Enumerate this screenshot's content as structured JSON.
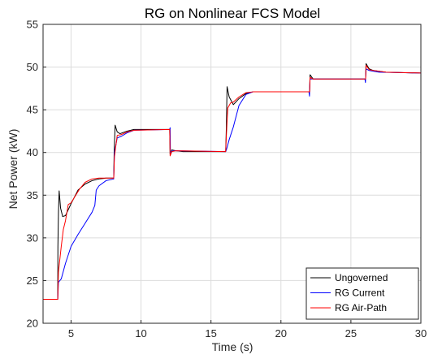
{
  "chart_data": {
    "type": "line",
    "title": "RG on Nonlinear FCS Model",
    "xlabel": "Time (s)",
    "ylabel": "Net Power (kW)",
    "xlim": [
      3,
      30
    ],
    "ylim": [
      20,
      55
    ],
    "xticks": [
      5,
      10,
      15,
      20,
      25,
      30
    ],
    "yticks": [
      20,
      25,
      30,
      35,
      40,
      45,
      50,
      55
    ],
    "grid": true,
    "legend": "bottom-right",
    "series": [
      {
        "name": "Ungoverned",
        "color": "#000000",
        "points": [
          [
            3,
            22.8
          ],
          [
            4.05,
            22.8
          ],
          [
            4.06,
            29
          ],
          [
            4.1,
            33
          ],
          [
            4.15,
            35.5
          ],
          [
            4.25,
            33.5
          ],
          [
            4.4,
            32.5
          ],
          [
            4.6,
            32.6
          ],
          [
            5,
            34
          ],
          [
            5.5,
            35.6
          ],
          [
            6,
            36.3
          ],
          [
            6.5,
            36.7
          ],
          [
            7,
            36.9
          ],
          [
            7.5,
            37
          ],
          [
            8.05,
            37
          ],
          [
            8.08,
            40
          ],
          [
            8.15,
            43.2
          ],
          [
            8.3,
            42.4
          ],
          [
            8.5,
            42.2
          ],
          [
            9,
            42.5
          ],
          [
            9.5,
            42.7
          ],
          [
            12.05,
            42.7
          ],
          [
            12.08,
            39.8
          ],
          [
            12.2,
            40.3
          ],
          [
            12.5,
            40.2
          ],
          [
            13,
            40.1
          ],
          [
            16.05,
            40.1
          ],
          [
            16.1,
            43
          ],
          [
            16.15,
            47.7
          ],
          [
            16.3,
            46.5
          ],
          [
            16.6,
            45.6
          ],
          [
            17,
            46.3
          ],
          [
            17.5,
            46.9
          ],
          [
            18,
            47.1
          ],
          [
            22.05,
            47.1
          ],
          [
            22.08,
            49.1
          ],
          [
            22.3,
            48.6
          ],
          [
            22.6,
            48.6
          ],
          [
            26.05,
            48.6
          ],
          [
            26.08,
            50.4
          ],
          [
            26.3,
            49.8
          ],
          [
            26.6,
            49.6
          ],
          [
            27.5,
            49.4
          ],
          [
            30,
            49.3
          ]
        ]
      },
      {
        "name": "RG Current",
        "color": "#0000ff",
        "points": [
          [
            3,
            22.8
          ],
          [
            4.05,
            22.8
          ],
          [
            4.1,
            24.8
          ],
          [
            4.3,
            25.2
          ],
          [
            4.6,
            27
          ],
          [
            5,
            29
          ],
          [
            5.5,
            30.4
          ],
          [
            6,
            31.7
          ],
          [
            6.5,
            33
          ],
          [
            6.7,
            33.8
          ],
          [
            6.8,
            35.6
          ],
          [
            7,
            36.1
          ],
          [
            7.5,
            36.7
          ],
          [
            8.05,
            36.9
          ],
          [
            8.1,
            40
          ],
          [
            8.3,
            41.7
          ],
          [
            8.6,
            41.9
          ],
          [
            9,
            42.3
          ],
          [
            9.5,
            42.6
          ],
          [
            12.05,
            42.7
          ],
          [
            12.08,
            42.9
          ],
          [
            12.1,
            40
          ],
          [
            12.3,
            40.2
          ],
          [
            12.6,
            40.2
          ],
          [
            16.05,
            40.1
          ],
          [
            16.1,
            40.3
          ],
          [
            16.3,
            41.5
          ],
          [
            16.6,
            43
          ],
          [
            17,
            45.5
          ],
          [
            17.5,
            46.8
          ],
          [
            18,
            47.1
          ],
          [
            22,
            47.1
          ],
          [
            22.04,
            46.6
          ],
          [
            22.08,
            48.6
          ],
          [
            22.3,
            48.6
          ],
          [
            26,
            48.6
          ],
          [
            26.04,
            48.2
          ],
          [
            26.08,
            49.8
          ],
          [
            26.3,
            49.6
          ],
          [
            27,
            49.4
          ],
          [
            30,
            49.3
          ]
        ]
      },
      {
        "name": "RG Air-Path",
        "color": "#ff0000",
        "points": [
          [
            3,
            22.8
          ],
          [
            4.05,
            22.8
          ],
          [
            4.1,
            26
          ],
          [
            4.3,
            29
          ],
          [
            4.45,
            31
          ],
          [
            4.6,
            32
          ],
          [
            4.8,
            33.9
          ],
          [
            5,
            34.1
          ],
          [
            5.3,
            34.9
          ],
          [
            5.6,
            35.7
          ],
          [
            6,
            36.5
          ],
          [
            6.5,
            36.9
          ],
          [
            7,
            37
          ],
          [
            8.05,
            37
          ],
          [
            8.1,
            39.5
          ],
          [
            8.3,
            42
          ],
          [
            8.6,
            42.1
          ],
          [
            9,
            42.4
          ],
          [
            9.5,
            42.6
          ],
          [
            12.05,
            42.7
          ],
          [
            12.08,
            39.6
          ],
          [
            12.2,
            40.1
          ],
          [
            12.5,
            40.2
          ],
          [
            16.05,
            40.1
          ],
          [
            16.1,
            42
          ],
          [
            16.2,
            45.2
          ],
          [
            16.4,
            45.8
          ],
          [
            16.6,
            45.9
          ],
          [
            17,
            46.5
          ],
          [
            17.5,
            47
          ],
          [
            18,
            47.1
          ],
          [
            22.05,
            47.1
          ],
          [
            22.08,
            48.8
          ],
          [
            22.3,
            48.6
          ],
          [
            26.05,
            48.6
          ],
          [
            26.08,
            50.2
          ],
          [
            26.3,
            49.7
          ],
          [
            26.6,
            49.6
          ],
          [
            27.5,
            49.4
          ],
          [
            30,
            49.3
          ]
        ]
      }
    ]
  }
}
